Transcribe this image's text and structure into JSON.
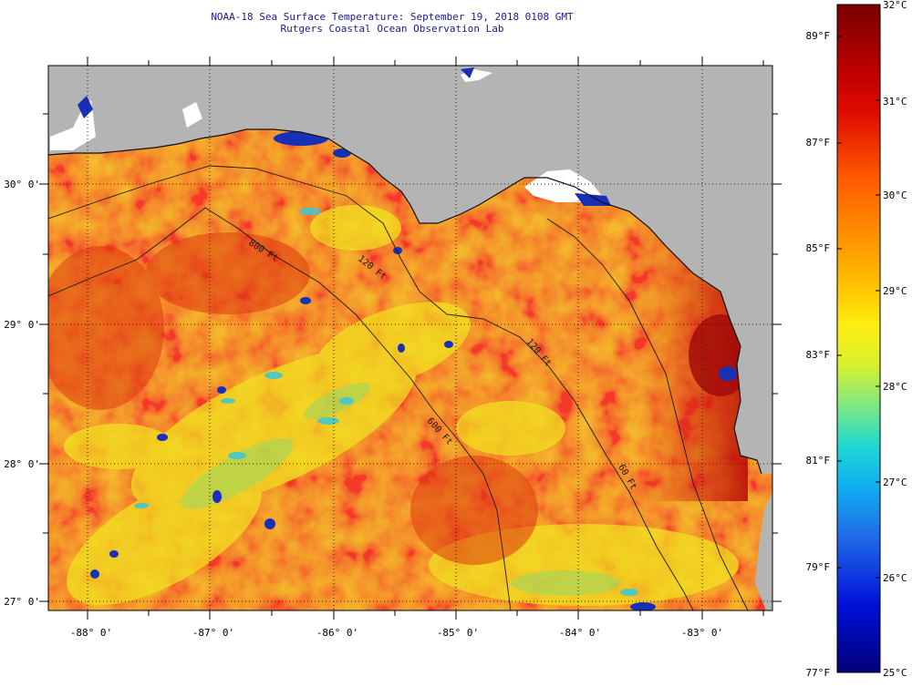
{
  "title_line1": "NOAA-18 Sea Surface Temperature:  September 19, 2018 0108 GMT",
  "title_line2": "Rutgers Coastal Ocean Observation Lab",
  "lon_labels": [
    "-88° 0'",
    "-87° 0'",
    "-86° 0'",
    "-85° 0'",
    "-84° 0'",
    "-83° 0'"
  ],
  "lat_labels": [
    "30° 0'",
    "29° 0'",
    "28° 0'",
    "27° 0'"
  ],
  "isobath_labels": [
    "800 Ft",
    "120 Ft",
    "600 Ft",
    "120 Ft",
    "60 Ft"
  ],
  "colorbar": {
    "celsius_labels": [
      "32°C",
      "31°C",
      "30°C",
      "29°C",
      "28°C",
      "27°C",
      "26°C",
      "25°C"
    ],
    "fahrenheit_labels": [
      "89°F",
      "87°F",
      "85°F",
      "83°F",
      "81°F",
      "79°F",
      "77°F"
    ],
    "range_celsius": [
      25,
      32
    ]
  },
  "colors": {
    "land": "#b4b4b4",
    "ocean_warm": "#f07a12",
    "ocean_hot": "#d8260c",
    "ocean_cool": "#f2d81c",
    "cloud": "#ffffff",
    "title_text": "#1a1a8c"
  }
}
